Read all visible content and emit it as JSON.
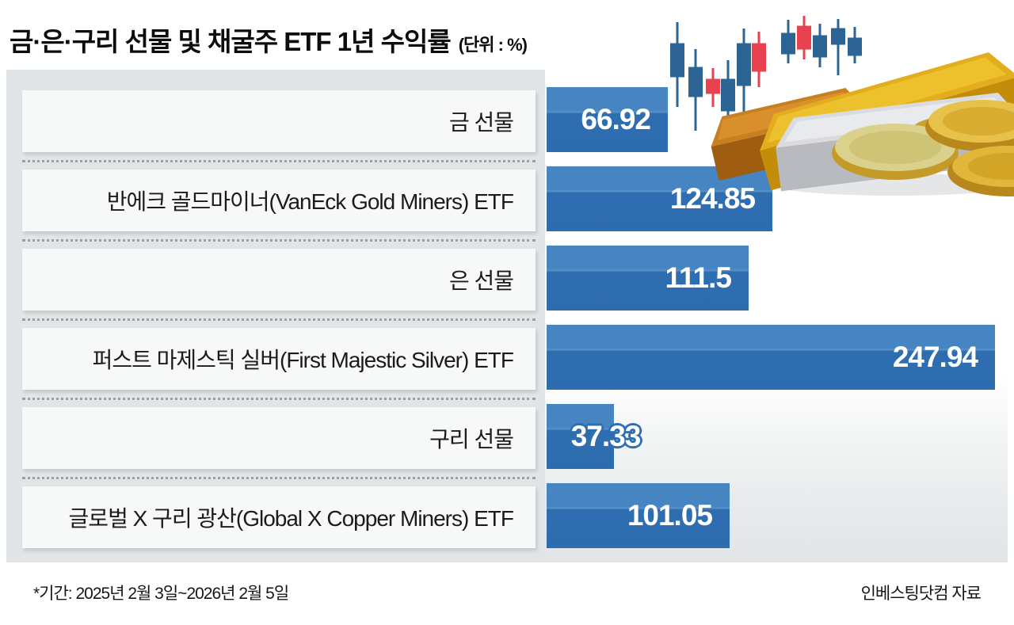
{
  "header": {
    "title": "금·은·구리 선물 및 채굴주 ETF 1년 수익률",
    "unit": "(단위 : %)"
  },
  "chart_data": {
    "type": "bar",
    "orientation": "horizontal",
    "title": "금·은·구리 선물 및 채굴주 ETF 1년 수익률",
    "unit_label": "(단위 : %)",
    "categories": [
      "금 선물",
      "반에크 골드마이너(VanEck Gold Miners) ETF",
      "은 선물",
      "퍼스트 마제스틱 실버(First Majestic Silver) ETF",
      "구리 선물",
      "글로벌 X 구리 광산(Global X Copper Miners) ETF"
    ],
    "values": [
      66.92,
      124.85,
      111.5,
      247.94,
      37.33,
      101.05
    ],
    "value_labels": [
      "66.92",
      "124.85",
      "111.5",
      "247.94",
      "37.33",
      "101.05"
    ],
    "xlim": [
      0,
      250
    ],
    "grid": false,
    "legend": false,
    "value_label_position": [
      "inside",
      "inside",
      "inside",
      "inside",
      "overflow",
      "inside"
    ]
  },
  "footer": {
    "period": "*기간: 2025년 2월 3일~2026년 2월 5일",
    "source": "인베스팅닷컴 자료"
  },
  "colors": {
    "bar_top": "#4684c2",
    "bar_bottom": "#2d6cae",
    "panel_bg": "#e2e5e7",
    "label_box_bg": "#f7f9f8",
    "candle_up": "#2c6493",
    "candle_down": "#e8414f",
    "title_text": "#0d0d0d",
    "bar_value_text": "#ffffff"
  },
  "illustration": {
    "description": "candlestick chart with gold, copper and silver ingots and gold coins"
  }
}
